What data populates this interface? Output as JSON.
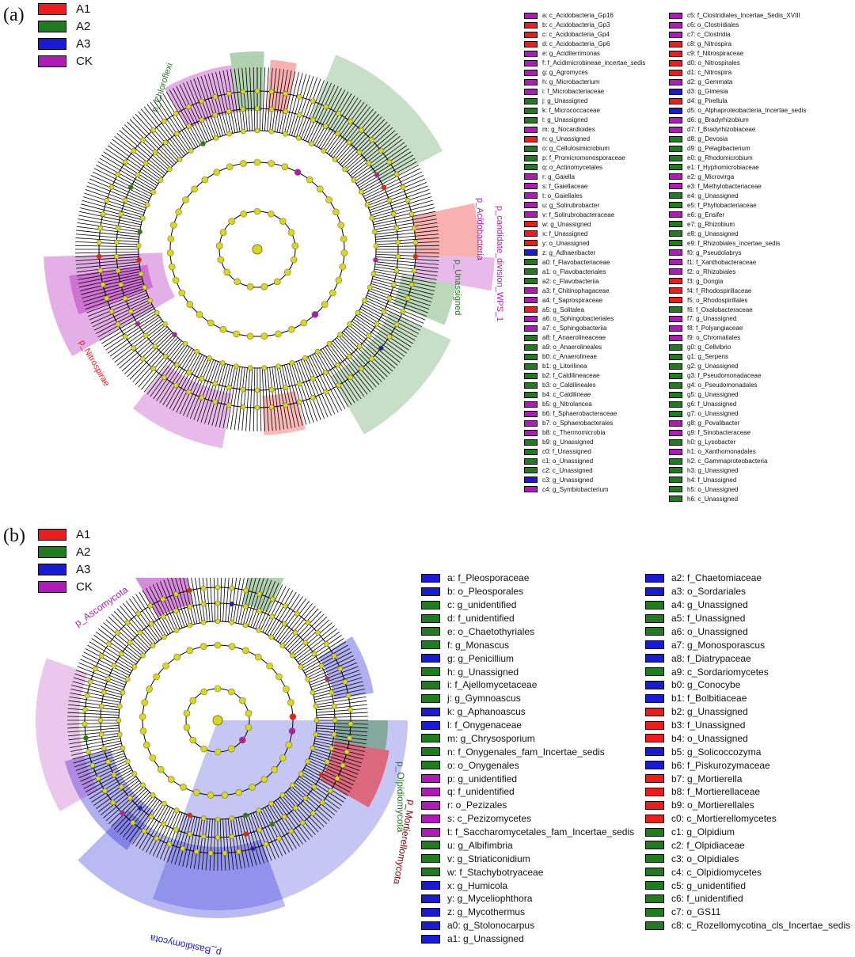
{
  "colors": {
    "A1": "#ee1c1c",
    "A2": "#1f7d1f",
    "A3": "#1a1ad6",
    "CK": "#b01ab8",
    "node": "#d8d824",
    "node_stroke": "#7a7a10"
  },
  "groups": [
    {
      "name": "A1",
      "color": "#ee1c1c"
    },
    {
      "name": "A2",
      "color": "#1f7d1f"
    },
    {
      "name": "A3",
      "color": "#1a1ad6"
    },
    {
      "name": "CK",
      "color": "#b01ab8"
    }
  ],
  "panel_a": {
    "label": "(a)",
    "clade_labels": [
      {
        "text": "p_Chloroflexi",
        "group": "A2"
      },
      {
        "text": "p_Acidobacteria",
        "group": "A1"
      },
      {
        "text": "p_candidate_division_WPS_1",
        "group": "CK"
      },
      {
        "text": "p_Unassigned",
        "group": "A2"
      },
      {
        "text": "p_Nitrospirae",
        "group": "A1"
      }
    ],
    "legend_col1": [
      {
        "text": "a: c_Acidobacteria_Gp16",
        "group": "CK"
      },
      {
        "text": "b: c_Acidobacteria_Gp3",
        "group": "A1"
      },
      {
        "text": "c: c_Acidobacteria_Gp4",
        "group": "A1"
      },
      {
        "text": "d: c_Acidobacteria_Gp6",
        "group": "A1"
      },
      {
        "text": "e: g_Aciditerrimonas",
        "group": "CK"
      },
      {
        "text": "f: f_Acidimicrobineae_incertae_sedis",
        "group": "CK"
      },
      {
        "text": "g: g_Agromyces",
        "group": "CK"
      },
      {
        "text": "h: g_Microbacterium",
        "group": "CK"
      },
      {
        "text": "i: f_Microbacteriaceae",
        "group": "CK"
      },
      {
        "text": "j: g_Unassigned",
        "group": "A2"
      },
      {
        "text": "k: f_Micrococcaceae",
        "group": "A2"
      },
      {
        "text": "l: g_Unassigned",
        "group": "A2"
      },
      {
        "text": "m: g_Nocardioides",
        "group": "CK"
      },
      {
        "text": "n: g_Unassigned",
        "group": "A1"
      },
      {
        "text": "o: g_Cellulosimicrobium",
        "group": "A2"
      },
      {
        "text": "p: f_Promicromonosporaceae",
        "group": "A2"
      },
      {
        "text": "q: o_Actinomycetales",
        "group": "A2"
      },
      {
        "text": "r: g_Gaiella",
        "group": "CK"
      },
      {
        "text": "s: f_Gaiellaceae",
        "group": "CK"
      },
      {
        "text": "t: o_Gaiellales",
        "group": "CK"
      },
      {
        "text": "u: g_Solirubrobacter",
        "group": "CK"
      },
      {
        "text": "v: f_Solirubrobacteraceae",
        "group": "CK"
      },
      {
        "text": "w: g_Unassigned",
        "group": "A1"
      },
      {
        "text": "x: f_Unassigned",
        "group": "A1"
      },
      {
        "text": "y: o_Unassigned",
        "group": "A1"
      },
      {
        "text": "z: g_Adhaeribacter",
        "group": "A3"
      },
      {
        "text": "a0: f_Flavobacteriaceae",
        "group": "A2"
      },
      {
        "text": "a1: o_Flavobacteriales",
        "group": "A2"
      },
      {
        "text": "a2: c_Flavobacteriia",
        "group": "A2"
      },
      {
        "text": "a3: f_Chitinophagaceae",
        "group": "CK"
      },
      {
        "text": "a4: f_Saprospiraceae",
        "group": "CK"
      },
      {
        "text": "a5: g_Solitalea",
        "group": "A1"
      },
      {
        "text": "a6: o_Sphingobacteriales",
        "group": "CK"
      },
      {
        "text": "a7: c_Sphingobacteriia",
        "group": "CK"
      },
      {
        "text": "a8: f_Anaerolineaceae",
        "group": "A2"
      },
      {
        "text": "a9: o_Anaerolineales",
        "group": "A2"
      },
      {
        "text": "b0: c_Anaerolineae",
        "group": "A2"
      },
      {
        "text": "b1: g_Litorilinea",
        "group": "A2"
      },
      {
        "text": "b2: f_Caldilineaceae",
        "group": "A2"
      },
      {
        "text": "b3: o_Caldilineales",
        "group": "A2"
      },
      {
        "text": "b4: c_Caldilineae",
        "group": "A2"
      },
      {
        "text": "b5: g_Nitrolancea",
        "group": "CK"
      },
      {
        "text": "b6: f_Sphaerobacteraceae",
        "group": "CK"
      },
      {
        "text": "b7: o_Sphaerobacterales",
        "group": "CK"
      },
      {
        "text": "b8: c_Thermomicrobia",
        "group": "CK"
      },
      {
        "text": "b9: g_Unassigned",
        "group": "A2"
      },
      {
        "text": "c0: f_Unassigned",
        "group": "A2"
      },
      {
        "text": "c1: o_Unassigned",
        "group": "A2"
      },
      {
        "text": "c2: c_Unassigned",
        "group": "A2"
      },
      {
        "text": "c3: g_Unassigned",
        "group": "A3"
      },
      {
        "text": "c4: g_Symbiobacterium",
        "group": "CK"
      }
    ],
    "legend_col2": [
      {
        "text": "c5: f_Clostridiales_Incertae_Sedis_XVIII",
        "group": "CK"
      },
      {
        "text": "c6: o_Clostridiales",
        "group": "CK"
      },
      {
        "text": "c7: c_Clostridia",
        "group": "CK"
      },
      {
        "text": "c8: g_Nitrospira",
        "group": "A1"
      },
      {
        "text": "c9: f_Nitrospiraceae",
        "group": "A1"
      },
      {
        "text": "d0: o_Nitrospirales",
        "group": "A1"
      },
      {
        "text": "d1: c_Nitrospira",
        "group": "A1"
      },
      {
        "text": "d2: g_Gemmata",
        "group": "CK"
      },
      {
        "text": "d3: g_Gimesia",
        "group": "A3"
      },
      {
        "text": "d4: g_Pirellula",
        "group": "A1"
      },
      {
        "text": "d5: o_Alphaproteobacteria_Incertae_sedis",
        "group": "A3"
      },
      {
        "text": "d6: g_Bradyrhizobium",
        "group": "CK"
      },
      {
        "text": "d7: f_Bradyrhizobiaceae",
        "group": "CK"
      },
      {
        "text": "d8: g_Devosia",
        "group": "A2"
      },
      {
        "text": "d9: g_Pelagibacterium",
        "group": "A2"
      },
      {
        "text": "e0: g_Rhodomicrobium",
        "group": "A2"
      },
      {
        "text": "e1: f_Hyphomicrobiaceae",
        "group": "A2"
      },
      {
        "text": "e2: g_Microvirga",
        "group": "CK"
      },
      {
        "text": "e3: f_Methylobacteriaceae",
        "group": "CK"
      },
      {
        "text": "e4: g_Unassigned",
        "group": "A2"
      },
      {
        "text": "e5: f_Phyllobacteriaceae",
        "group": "A2"
      },
      {
        "text": "e6: g_Ensifer",
        "group": "CK"
      },
      {
        "text": "e7: g_Rhizobium",
        "group": "A2"
      },
      {
        "text": "e8: g_Unassigned",
        "group": "A2"
      },
      {
        "text": "e9: f_Rhizobiales_incertae_sedis",
        "group": "A2"
      },
      {
        "text": "f0: g_Pseudolabrys",
        "group": "CK"
      },
      {
        "text": "f1: f_Xanthobacteraceae",
        "group": "CK"
      },
      {
        "text": "f2: o_Rhizobiales",
        "group": "CK"
      },
      {
        "text": "f3: g_Dongia",
        "group": "A1"
      },
      {
        "text": "f4: f_Rhodospirillaceae",
        "group": "A1"
      },
      {
        "text": "f5: o_Rhodospirillales",
        "group": "A1"
      },
      {
        "text": "f6: f_Oxalobacteraceae",
        "group": "A2"
      },
      {
        "text": "f7: g_Unassigned",
        "group": "CK"
      },
      {
        "text": "f8: f_Polyangiaceae",
        "group": "CK"
      },
      {
        "text": "f9: o_Chromatiales",
        "group": "CK"
      },
      {
        "text": "g0: g_Cellvibrio",
        "group": "A2"
      },
      {
        "text": "g1: g_Serpens",
        "group": "A2"
      },
      {
        "text": "g2: g_Unassigned",
        "group": "A2"
      },
      {
        "text": "g3: f_Pseudomonadaceae",
        "group": "A2"
      },
      {
        "text": "g4: o_Pseudomonadales",
        "group": "A2"
      },
      {
        "text": "g5: g_Unassigned",
        "group": "A2"
      },
      {
        "text": "g6: f_Unassigned",
        "group": "A2"
      },
      {
        "text": "g7: o_Unassigned",
        "group": "A2"
      },
      {
        "text": "g8: g_Povalibacter",
        "group": "CK"
      },
      {
        "text": "g9: f_Sinobacteraceae",
        "group": "CK"
      },
      {
        "text": "h0: g_Lysobacter",
        "group": "A2"
      },
      {
        "text": "h1: o_Xanthomonadales",
        "group": "CK"
      },
      {
        "text": "h2: c_Gammaproteobacteria",
        "group": "A2"
      },
      {
        "text": "h3: g_Unassigned",
        "group": "A2"
      },
      {
        "text": "h4: f_Unassigned",
        "group": "A2"
      },
      {
        "text": "h5: o_Unassigned",
        "group": "A2"
      },
      {
        "text": "h6: c_Unassigned",
        "group": "A2"
      }
    ]
  },
  "panel_b": {
    "label": "(b)",
    "clade_labels": [
      {
        "text": "p_Ascomycota",
        "group": "CK"
      },
      {
        "text": "p_Olpidiomycota",
        "group": "A2"
      },
      {
        "text": "p_Mortierellomycota",
        "group": "A1"
      },
      {
        "text": "p_Basidiomycota",
        "group": "A3"
      }
    ],
    "legend_col1": [
      {
        "text": "a: f_Pleosporaceae",
        "group": "A3"
      },
      {
        "text": "b: o_Pleosporales",
        "group": "A3"
      },
      {
        "text": "c: g_unidentified",
        "group": "A2"
      },
      {
        "text": "d: f_unidentified",
        "group": "A2"
      },
      {
        "text": "e: o_Chaetothyriales",
        "group": "A2"
      },
      {
        "text": "f: g_Monascus",
        "group": "A2"
      },
      {
        "text": "g: g_Penicillium",
        "group": "A3"
      },
      {
        "text": "h: g_Unassigned",
        "group": "A2"
      },
      {
        "text": "i: f_Ajellomycetaceae",
        "group": "A2"
      },
      {
        "text": "j: g_Gymnoascus",
        "group": "A2"
      },
      {
        "text": "k: g_Aphanoascus",
        "group": "A3"
      },
      {
        "text": "l: f_Onygenaceae",
        "group": "A3"
      },
      {
        "text": "m: g_Chrysosporium",
        "group": "A2"
      },
      {
        "text": "n: f_Onygenales_fam_Incertae_sedis",
        "group": "A2"
      },
      {
        "text": "o: o_Onygenales",
        "group": "A2"
      },
      {
        "text": "p: g_unidentified",
        "group": "CK"
      },
      {
        "text": "q: f_unidentified",
        "group": "CK"
      },
      {
        "text": "r: o_Pezizales",
        "group": "CK"
      },
      {
        "text": "s: c_Pezizomycetes",
        "group": "CK"
      },
      {
        "text": "t: f_Saccharomycetales_fam_Incertae_sedis",
        "group": "CK"
      },
      {
        "text": "u: g_Albifimbria",
        "group": "A2"
      },
      {
        "text": "v: g_Striaticonidium",
        "group": "A2"
      },
      {
        "text": "w: f_Stachybotryaceae",
        "group": "A2"
      },
      {
        "text": "x: g_Humicola",
        "group": "A3"
      },
      {
        "text": "y: g_Myceliophthora",
        "group": "A3"
      },
      {
        "text": "z: g_Mycothermus",
        "group": "A3"
      },
      {
        "text": "a0: g_Stolonocarpus",
        "group": "A3"
      },
      {
        "text": "a1: g_Unassigned",
        "group": "A3"
      }
    ],
    "legend_col2": [
      {
        "text": "a2: f_Chaetomiaceae",
        "group": "A3"
      },
      {
        "text": "a3: o_Sordariales",
        "group": "A3"
      },
      {
        "text": "a4: g_Unassigned",
        "group": "A2"
      },
      {
        "text": "a5: f_Unassigned",
        "group": "A2"
      },
      {
        "text": "a6: o_Unassigned",
        "group": "A2"
      },
      {
        "text": "a7: g_Monosporascus",
        "group": "A3"
      },
      {
        "text": "a8: f_Diatrypaceae",
        "group": "A3"
      },
      {
        "text": "a9: c_Sordariomycetes",
        "group": "A2"
      },
      {
        "text": "b0: g_Conocybe",
        "group": "A3"
      },
      {
        "text": "b1: f_Bolbitiaceae",
        "group": "A3"
      },
      {
        "text": "b2: g_Unassigned",
        "group": "A1"
      },
      {
        "text": "b3: f_Unassigned",
        "group": "A1"
      },
      {
        "text": "b4: o_Unassigned",
        "group": "A1"
      },
      {
        "text": "b5: g_Solicoccozyma",
        "group": "A3"
      },
      {
        "text": "b6: f_Piskurozymaceae",
        "group": "A3"
      },
      {
        "text": "b7: g_Mortierella",
        "group": "A1"
      },
      {
        "text": "b8: f_Mortierellaceae",
        "group": "A1"
      },
      {
        "text": "b9: o_Mortierellales",
        "group": "A1"
      },
      {
        "text": "c0: c_Mortierellomycetes",
        "group": "A1"
      },
      {
        "text": "c1: g_Olpidium",
        "group": "A2"
      },
      {
        "text": "c2: f_Olpidiaceae",
        "group": "A2"
      },
      {
        "text": "c3: o_Olpidiales",
        "group": "A2"
      },
      {
        "text": "c4: c_Olpidiomycetes",
        "group": "A2"
      },
      {
        "text": "c5: g_unidentified",
        "group": "A2"
      },
      {
        "text": "c6: f_unidentified",
        "group": "A2"
      },
      {
        "text": "c7: o_GS11",
        "group": "A2"
      },
      {
        "text": "c8: c_Rozellomycotina_cls_Incertae_sedis",
        "group": "A2"
      }
    ]
  }
}
